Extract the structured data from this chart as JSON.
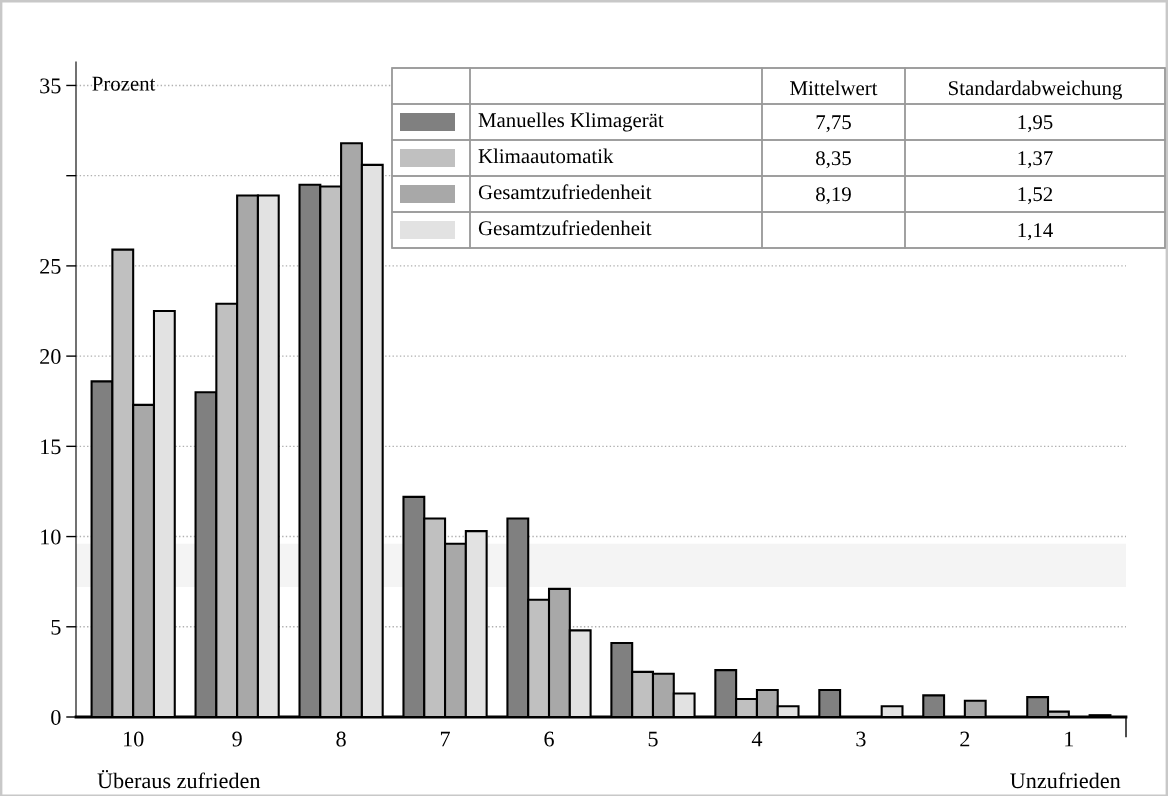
{
  "chart_data": {
    "type": "bar",
    "ylabel": "Prozent",
    "categories": [
      "10",
      "9",
      "8",
      "7",
      "6",
      "5",
      "4",
      "3",
      "2",
      "1"
    ],
    "series": [
      {
        "name": "Manuelles Klimagerät",
        "color": "#808080",
        "values": [
          18.6,
          18.0,
          29.5,
          12.2,
          11.0,
          4.1,
          2.6,
          1.5,
          1.2,
          1.1
        ]
      },
      {
        "name": "Klimaautomatik",
        "color": "#c0c0c0",
        "values": [
          25.9,
          22.9,
          29.4,
          11.0,
          6.5,
          2.5,
          1.0,
          0,
          0,
          0.3
        ]
      },
      {
        "name": "Gesamtzufriedenheit",
        "color": "#a8a8a8",
        "values": [
          17.3,
          28.9,
          31.8,
          9.6,
          7.1,
          2.4,
          1.5,
          0,
          0.9,
          0
        ]
      },
      {
        "name": "Gesamtzufriedenheit",
        "color": "#e2e2e2",
        "values": [
          22.5,
          28.9,
          30.6,
          10.3,
          4.8,
          1.3,
          0.6,
          0.6,
          0,
          0.1
        ]
      }
    ],
    "ylim": [
      0,
      36.3
    ],
    "yticks": [
      0,
      5,
      10,
      15,
      20,
      25,
      {
        "value": 30,
        "label": null
      },
      35
    ],
    "grid": "y",
    "legend": "top",
    "bands": [
      {
        "axis": "y",
        "from": 7.2,
        "to": 9.6,
        "color": "#f4f4f4"
      }
    ],
    "annotations": [
      "Überaus zufrieden",
      "Unzufrieden",
      "Mittelwert",
      "Standardabweichung",
      "7,75",
      "1,95",
      "8,35",
      "1,37",
      "8,19",
      "1,52",
      "1,14"
    ]
  }
}
